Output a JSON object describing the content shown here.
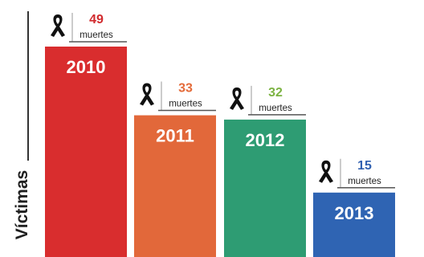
{
  "chart_data": {
    "type": "bar",
    "ylabel": "Víctimas",
    "categories": [
      "2010",
      "2011",
      "2012",
      "2013"
    ],
    "values": [
      49,
      33,
      32,
      15
    ],
    "unit_label": "muertes",
    "colors": [
      "#d92d2e",
      "#e2683a",
      "#2e9c73",
      "#2f64b3"
    ],
    "value_colors": [
      "#d12a2d",
      "#e46b3a",
      "#7cb342",
      "#2f5fb0"
    ],
    "icon": "mourning-ribbon-icon",
    "ylim": [
      0,
      49
    ]
  }
}
